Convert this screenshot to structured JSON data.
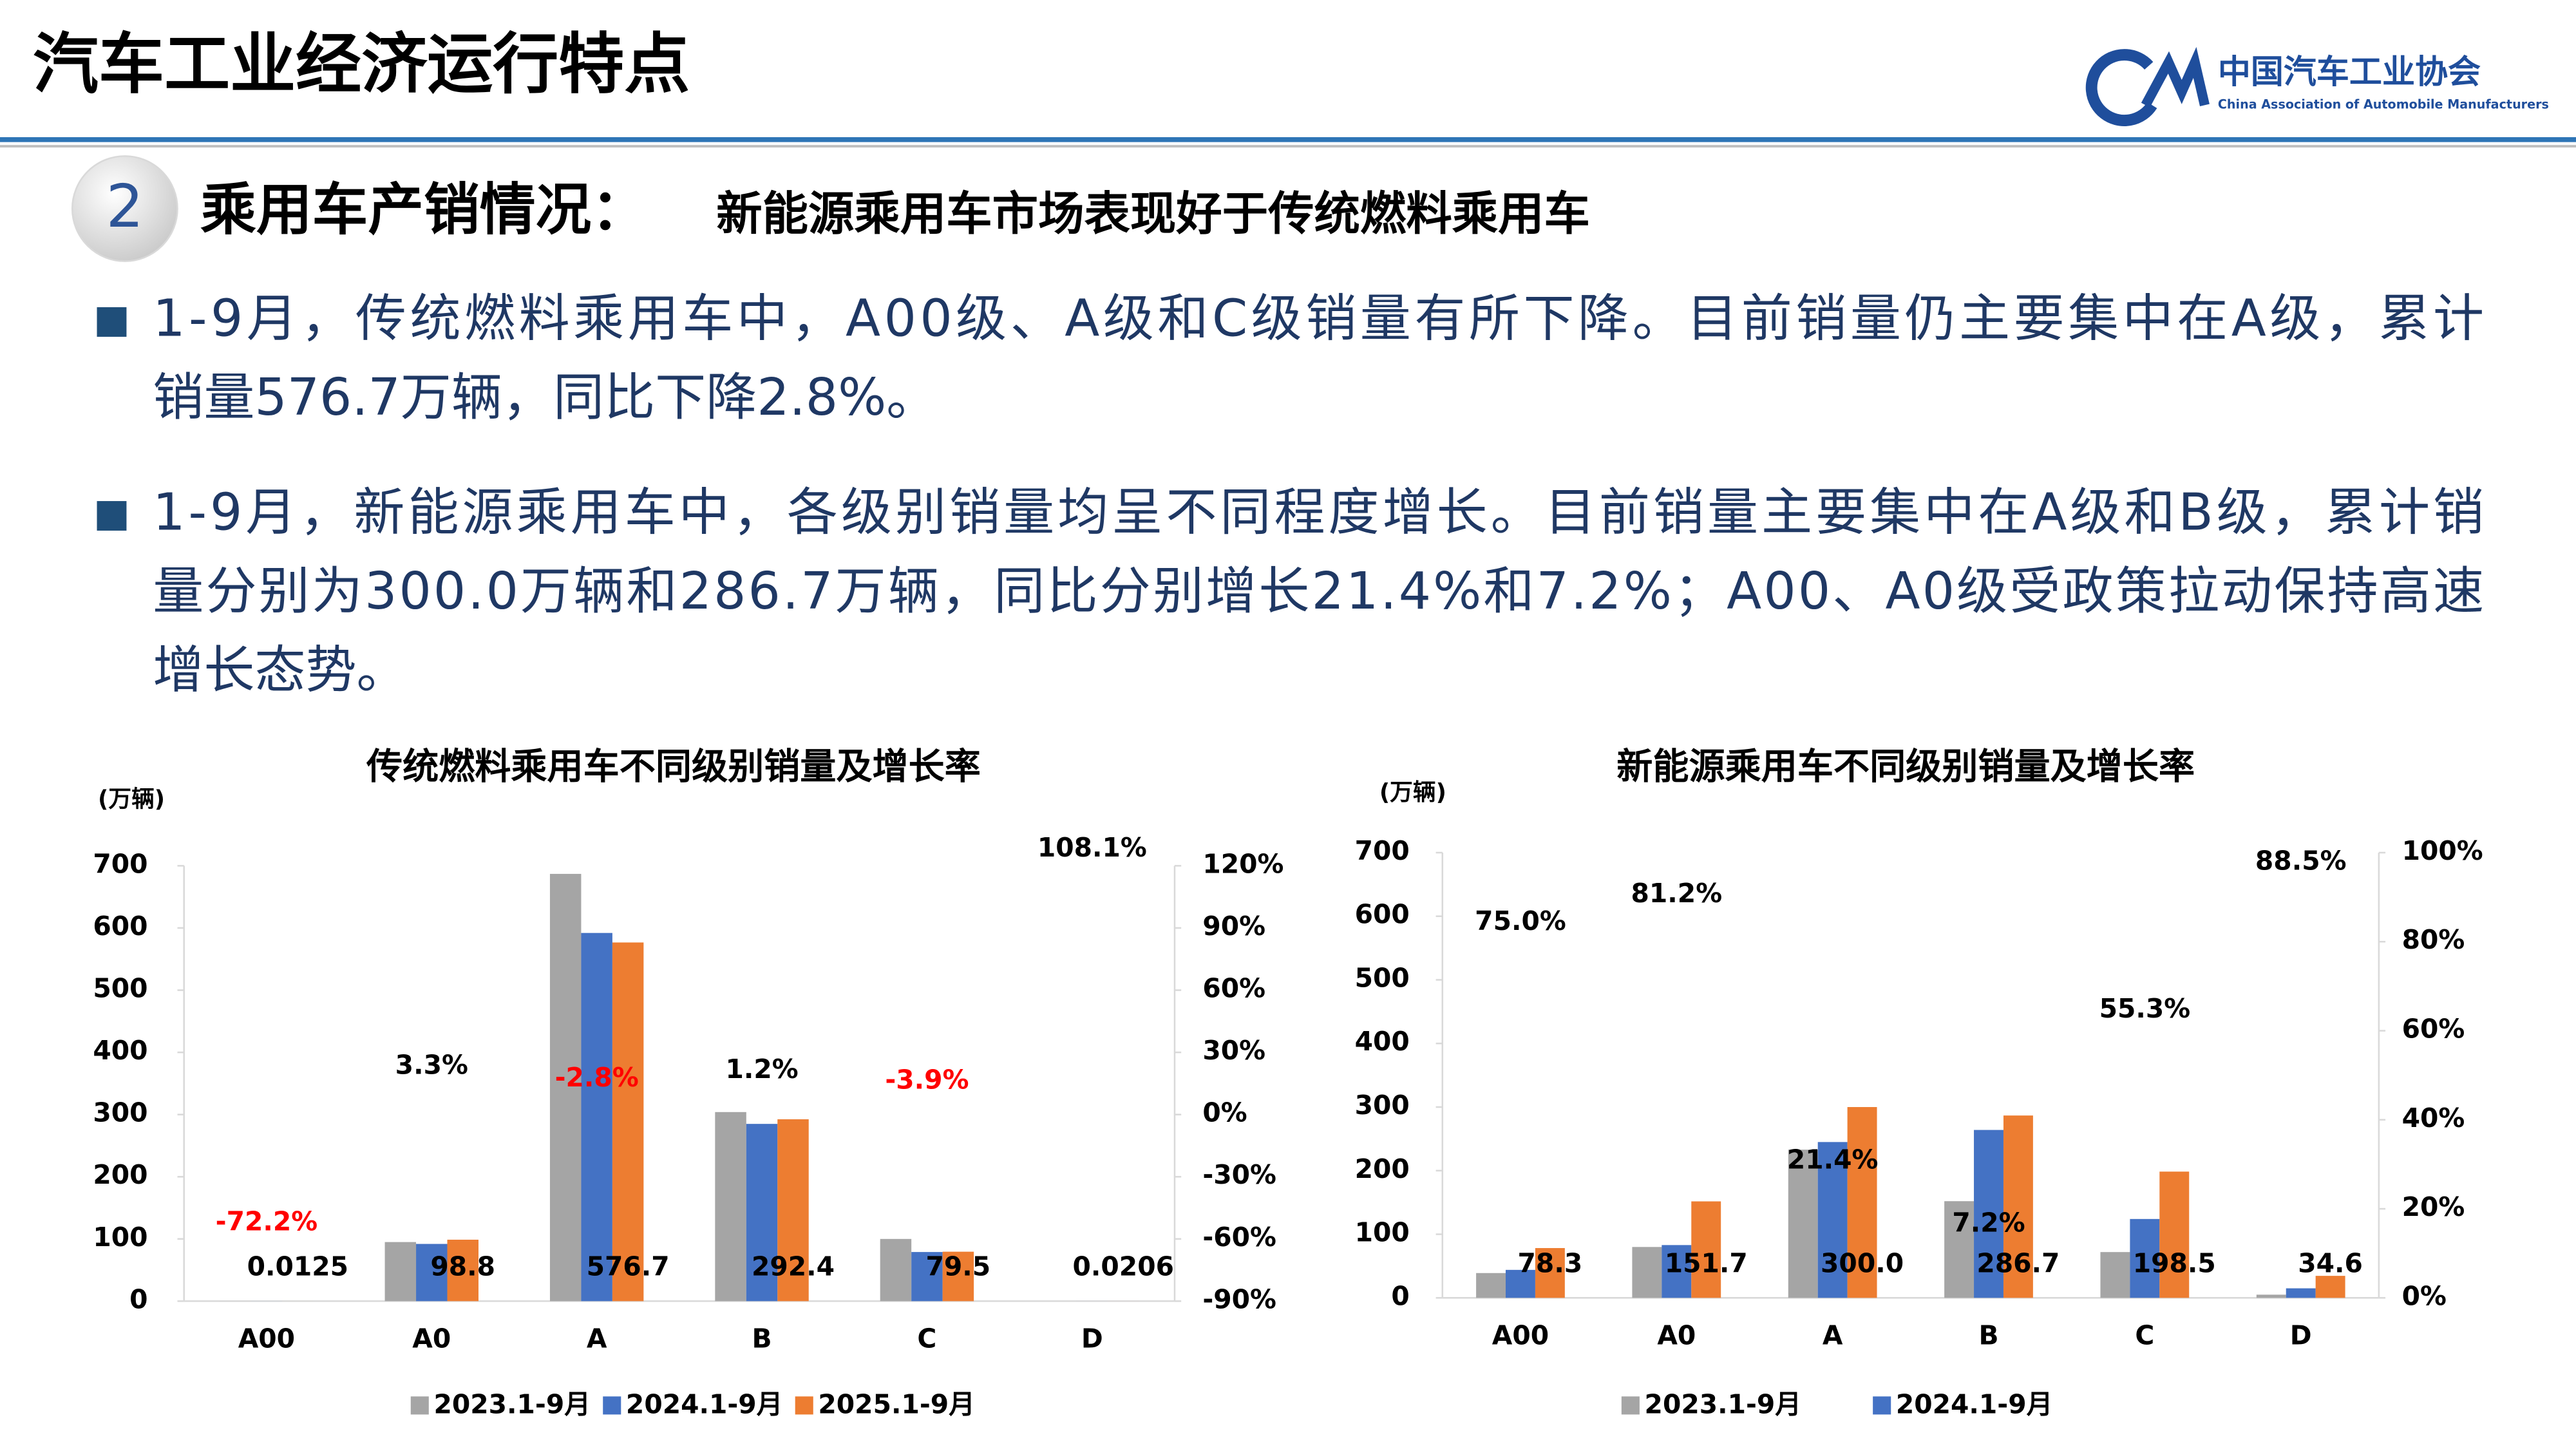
{
  "header": {
    "title": "汽车工业经济运行特点",
    "logo_cn": "中国汽车工业协会",
    "logo_en": "China Association of Automobile Manufacturers"
  },
  "section": {
    "number": "2",
    "heading": "乘用车产销情况：",
    "subheading": "新能源乘用车市场表现好于传统燃料乘用车"
  },
  "bullets": [
    {
      "lines": [
        "1-9月，传统燃料乘用车中，A00级、A级和C级销量有所下降。目前销量仍主要集中在A级，累计",
        "销量576.7万辆，同比下降2.8%。"
      ]
    },
    {
      "lines": [
        "1-9月，新能源乘用车中，各级别销量均呈不同程度增长。目前销量主要集中在A级和B级，累计销",
        "量分别为300.0万辆和286.7万辆，同比分别增长21.4%和7.2%；A00、A0级受政策拉动保持高速",
        "增长态势。"
      ]
    }
  ],
  "chart_data": [
    {
      "type": "bar",
      "title": "传统燃料乘用车不同级别销量及增长率",
      "y_unit": "(万辆)",
      "categories": [
        "A00",
        "A0",
        "A",
        "B",
        "C",
        "D"
      ],
      "series": [
        {
          "name": "2023.1-9月",
          "color": "#a5a5a5",
          "values": [
            0.1,
            95,
            687,
            304,
            100,
            0.03
          ]
        },
        {
          "name": "2024.1-9月",
          "color": "#4472c4",
          "values": [
            0.05,
            92,
            592,
            285,
            79,
            0.025
          ]
        },
        {
          "name": "2025.1-9月",
          "color": "#ed7d31",
          "values": [
            0.0125,
            98.8,
            576.7,
            292.4,
            79.5,
            0.0206
          ],
          "value_labels": [
            "0.0125",
            "98.8",
            "576.7",
            "292.4",
            "79.5",
            "0.0206"
          ]
        },
        {
          "axis": "y2",
          "color": "#000000",
          "negative_color": "#ff0000",
          "values": [
            -72.2,
            3.3,
            -2.8,
            1.2,
            -3.9,
            108.1
          ],
          "value_labels": [
            "-72.2%",
            "3.3%",
            "-2.8%",
            "1.2%",
            "-3.9%",
            "108.1%"
          ]
        }
      ],
      "ylim": [
        0,
        700
      ],
      "yticks": [
        0,
        100,
        200,
        300,
        400,
        500,
        600,
        700
      ],
      "y2lim": [
        -90,
        120
      ],
      "y2ticks": [
        {
          "value": -90,
          "label": "-90%"
        },
        {
          "value": -60,
          "label": "-60%"
        },
        {
          "value": -30,
          "label": "-30%"
        },
        {
          "value": 0,
          "label": "0%"
        },
        {
          "value": 30,
          "label": "30%"
        },
        {
          "value": 60,
          "label": "60%"
        },
        {
          "value": 90,
          "label": "90%"
        },
        {
          "value": 120,
          "label": "120%"
        }
      ],
      "grid": false
    },
    {
      "type": "bar",
      "title": "新能源乘用车不同级别销量及增长率",
      "y_unit": "(万辆)",
      "categories": [
        "A00",
        "A0",
        "A",
        "B",
        "C",
        "D"
      ],
      "series": [
        {
          "name": "2023.1-9月",
          "color": "#a5a5a5",
          "values": [
            39,
            80,
            233,
            152,
            72,
            5
          ]
        },
        {
          "name": "2024.1-9月",
          "color": "#4472c4",
          "values": [
            44,
            83,
            245,
            264,
            124,
            15
          ]
        },
        {
          "color": "#ed7d31",
          "values": [
            78.3,
            151.7,
            300.0,
            286.7,
            198.5,
            34.6
          ],
          "value_labels": [
            "78.3",
            "151.7",
            "300.0",
            "286.7",
            "198.5",
            "34.6"
          ]
        },
        {
          "axis": "y2",
          "color": "#000000",
          "negative_color": "#ff0000",
          "values": [
            75.0,
            81.2,
            21.4,
            7.2,
            55.3,
            88.5
          ],
          "value_labels": [
            "75.0%",
            "81.2%",
            "21.4%",
            "7.2%",
            "55.3%",
            "88.5%"
          ]
        }
      ],
      "ylim": [
        0,
        700
      ],
      "yticks": [
        0,
        100,
        200,
        300,
        400,
        500,
        600,
        700
      ],
      "y2lim": [
        0,
        100
      ],
      "y2ticks": [
        {
          "value": 0,
          "label": "0%"
        },
        {
          "value": 20,
          "label": "20%"
        },
        {
          "value": 40,
          "label": "40%"
        },
        {
          "value": 60,
          "label": "60%"
        },
        {
          "value": 80,
          "label": "80%"
        },
        {
          "value": 100,
          "label": "100%"
        }
      ],
      "grid": false
    }
  ]
}
